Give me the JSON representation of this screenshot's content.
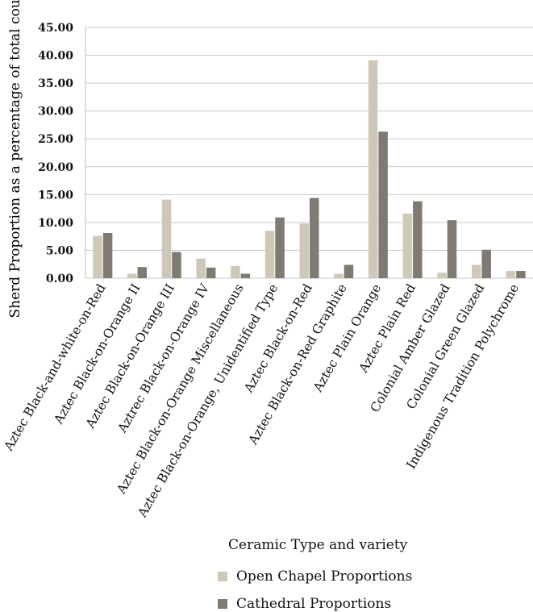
{
  "chart_data": {
    "type": "bar",
    "xlabel": "Ceramic Type and variety",
    "ylabel": "Sherd Proportion as a percentage of total count",
    "ylim": [
      0,
      45
    ],
    "yticks": [
      "0.00",
      "5.00",
      "10.00",
      "15.00",
      "20.00",
      "25.00",
      "30.00",
      "35.00",
      "40.00",
      "45.00"
    ],
    "grid": true,
    "legend_position": "bottom",
    "categories": [
      "Aztec Black-and-white-on-Red",
      "Aztec Black-on-Orange II",
      "Aztec Black-on-Orange III",
      "Aztrec Black-on-Orange IV",
      "Aztec Black-on-Orange Miscellaneous",
      "Aztec Black-on-Orange, Unidentified Type",
      "Aztec Black-on-Red",
      "Aztec Black-on-Red Graphite",
      "Aztec Plain Orange",
      "Aztec Plain Red",
      "Colonial Amber Glazed",
      "Colonial Green Glazed",
      "Indigenous Tradition Polychrome"
    ],
    "series": [
      {
        "name": "Open Chapel Proportions",
        "color": "#cfc8b8",
        "values": [
          7.6,
          0.8,
          14.1,
          3.5,
          2.2,
          8.5,
          9.8,
          0.8,
          39.1,
          11.6,
          1.0,
          2.4,
          1.3
        ]
      },
      {
        "name": "Cathedral Proportions",
        "color": "#7f7a72",
        "values": [
          8.1,
          2.0,
          4.7,
          1.9,
          0.8,
          10.9,
          14.4,
          2.4,
          26.3,
          13.8,
          10.4,
          5.1,
          1.3
        ]
      }
    ]
  }
}
